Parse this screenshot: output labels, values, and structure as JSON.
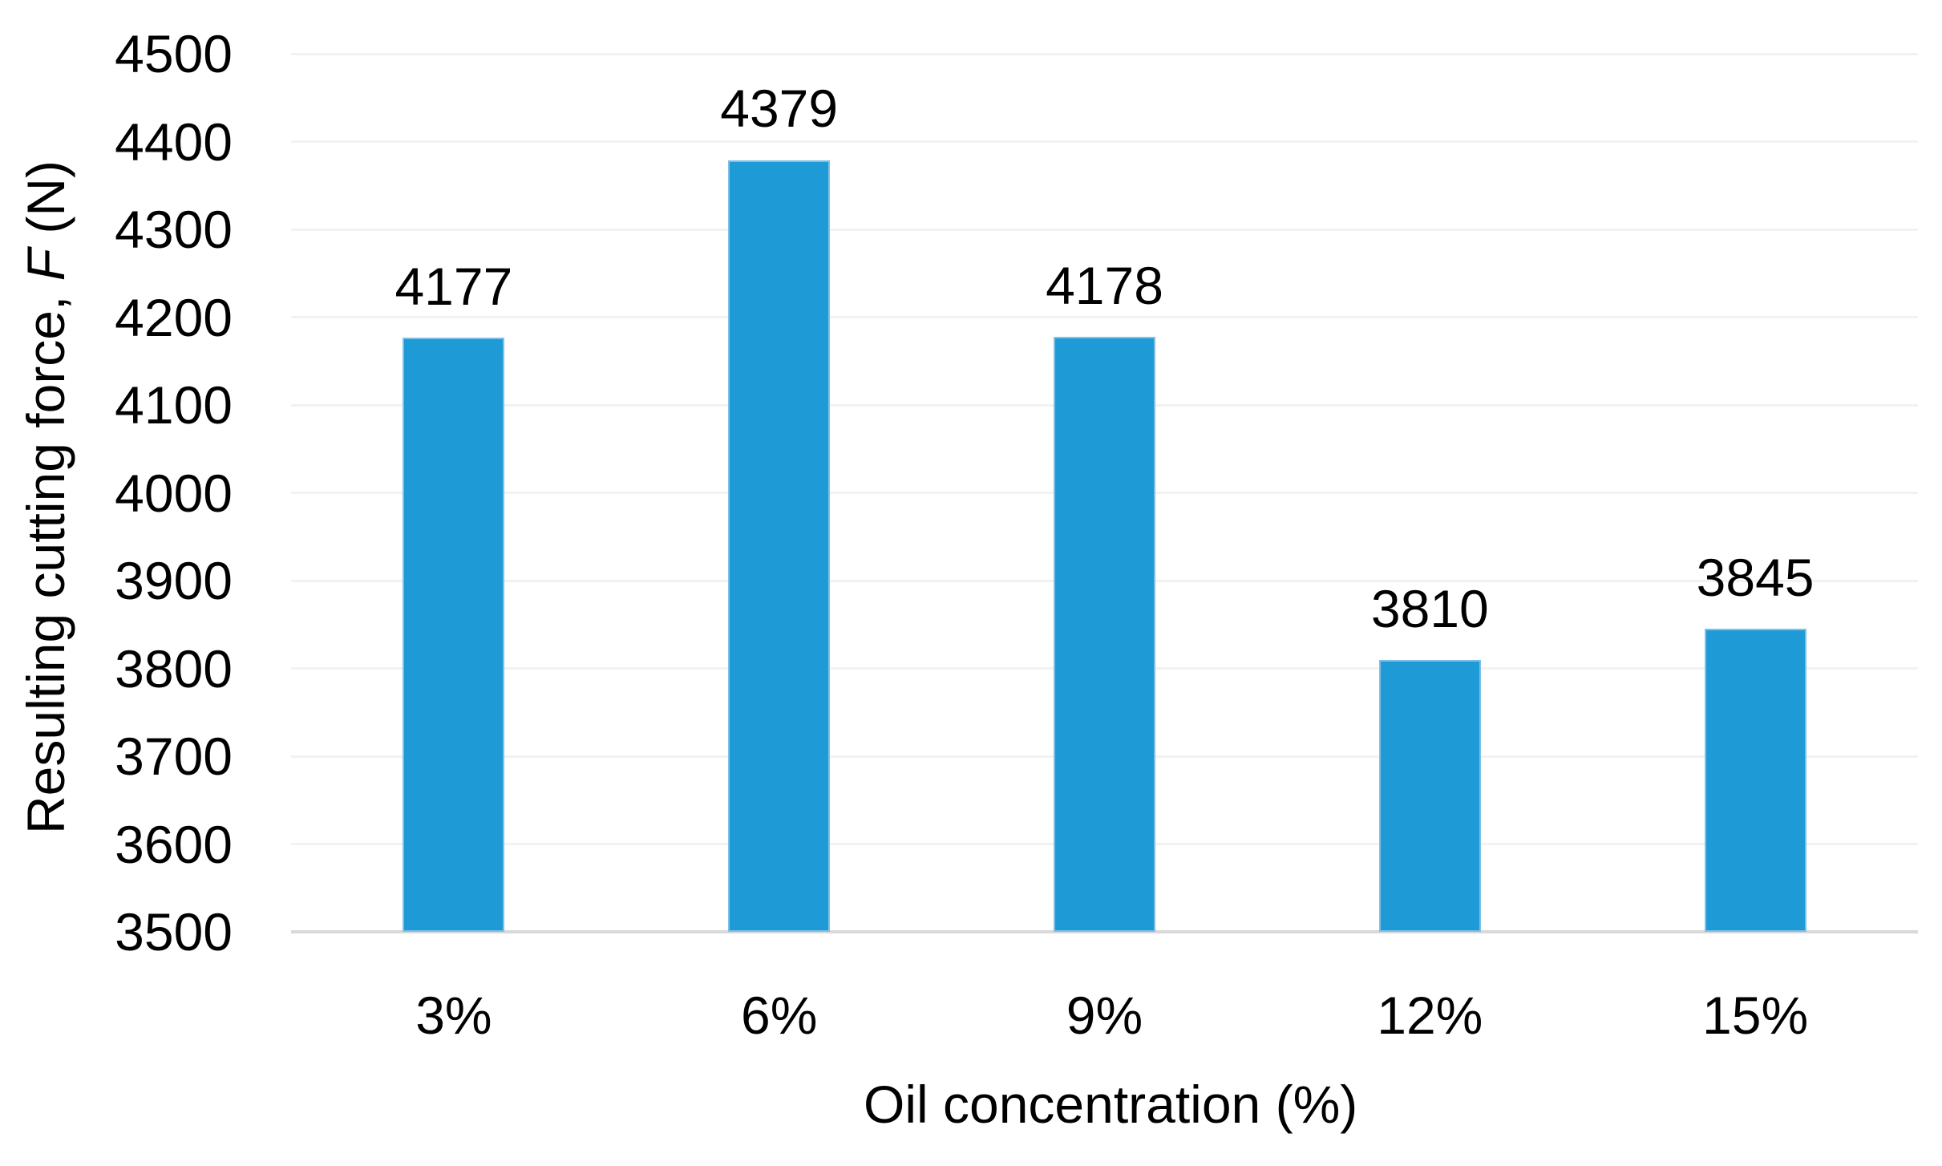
{
  "chart_data": {
    "type": "bar",
    "categories": [
      "3%",
      "6%",
      "9%",
      "12%",
      "15%"
    ],
    "values": [
      4177,
      4379,
      4178,
      3810,
      3845
    ],
    "data_labels_shown": true,
    "title": "",
    "xlabel": "Oil concentration (%)",
    "ylabel": "Resulting cutting force, F (N)",
    "ylabel_parts": {
      "prefix": "Resulting cutting force, ",
      "symbol": "F",
      "suffix": " (N)"
    },
    "ylim": [
      3500,
      4500
    ],
    "ytick_step": 100,
    "ytick_labels": [
      "3500",
      "3600",
      "3700",
      "3800",
      "3900",
      "4000",
      "4100",
      "4200",
      "4300",
      "4400",
      "4500"
    ],
    "grid": true,
    "legend_position": "none",
    "colors": {
      "bar_fill": "#1E9AD6",
      "bar_border": "#7EC0E8",
      "gridline": "#F2F2F2",
      "axis_line": "#D9D9D9",
      "text": "#000000",
      "background": "#FFFFFF"
    }
  }
}
